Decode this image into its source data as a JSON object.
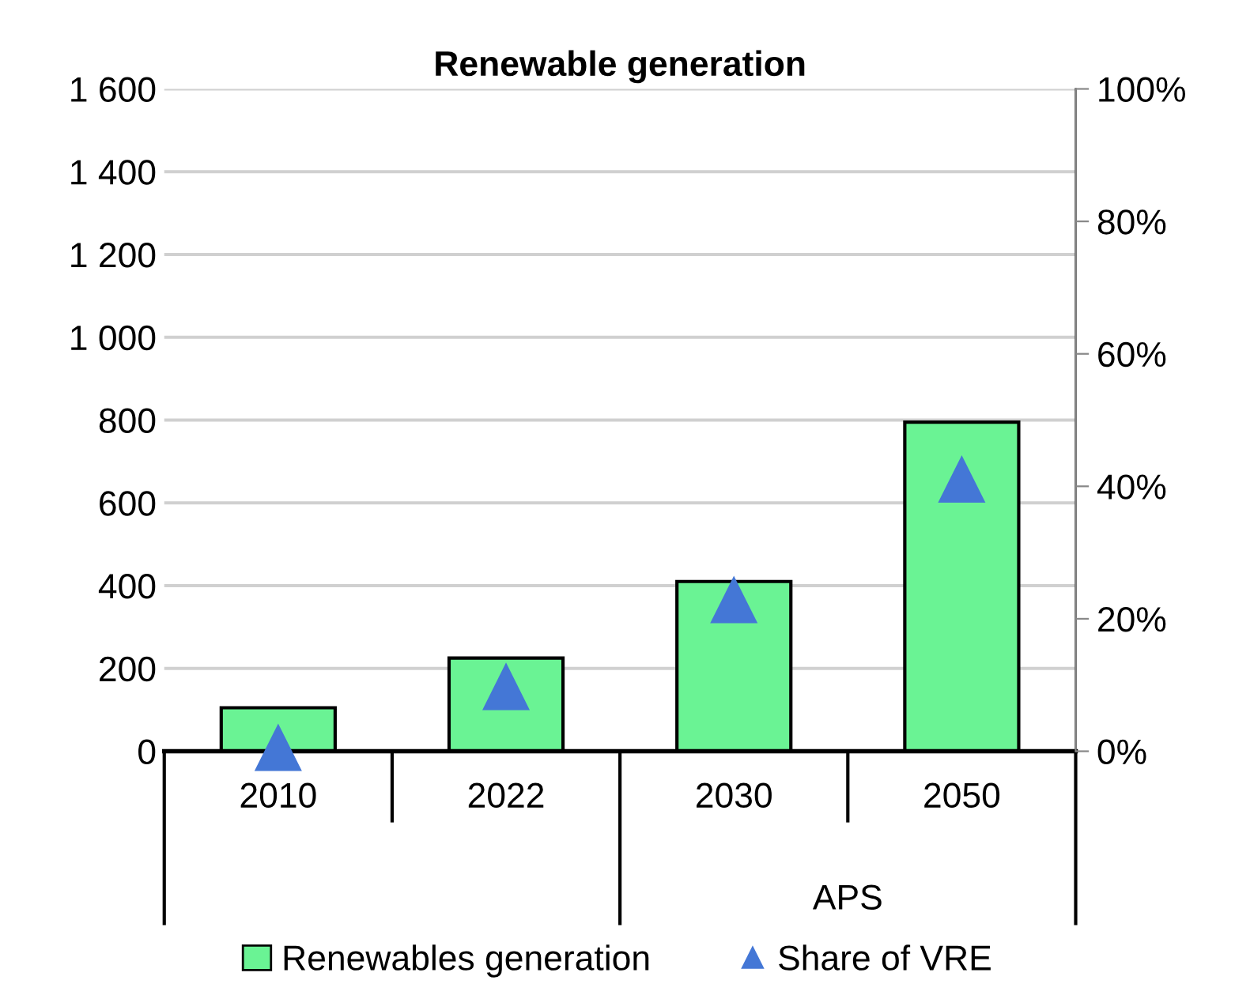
{
  "chart_data": {
    "type": "bar",
    "title": "Renewable generation",
    "categories": [
      "2010",
      "2022",
      "2030",
      "2050"
    ],
    "series": [
      {
        "name": "Renewables generation",
        "color": "#6af394",
        "values": [
          105,
          225,
          410,
          795
        ]
      },
      {
        "name": "Share of VRE",
        "type": "scatter",
        "axis": "y2",
        "color": "#4477d6",
        "values": [
          0.5,
          9.7,
          22.8,
          41
        ]
      }
    ],
    "ylim": [
      0,
      1600
    ],
    "yticks": [
      0,
      {
        "value": 200,
        "label": "200"
      },
      {
        "value": 400,
        "label": "400"
      },
      {
        "value": 600,
        "label": "600"
      },
      {
        "value": 800,
        "label": "800"
      },
      {
        "value": 1000,
        "label": "1 000"
      },
      {
        "value": 1200,
        "label": "1 200"
      },
      {
        "value": 1400,
        "label": "1 400"
      },
      {
        "value": 1600,
        "label": "1 600"
      }
    ],
    "y2lim": [
      0,
      100
    ],
    "y2ticks": [
      {
        "value": 0,
        "label": "0%"
      },
      {
        "value": 20,
        "label": "20%"
      },
      {
        "value": 40,
        "label": "40%"
      },
      {
        "value": 60,
        "label": "60%"
      },
      {
        "value": 80,
        "label": "80%"
      },
      {
        "value": 100,
        "label": "100%"
      }
    ],
    "annotations": [
      "APS"
    ],
    "grid": "y",
    "legend": "bottom",
    "marker": "triangle"
  }
}
